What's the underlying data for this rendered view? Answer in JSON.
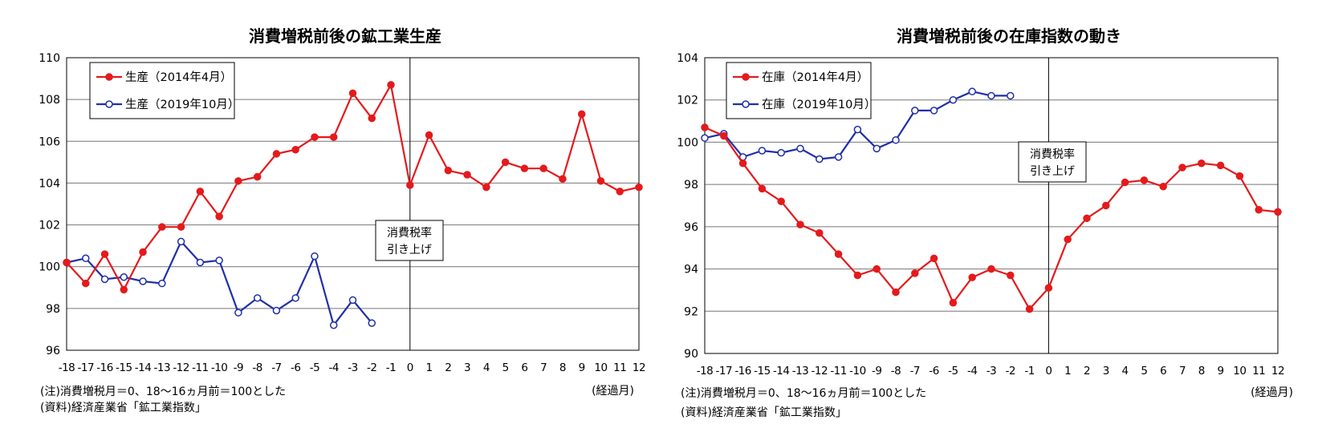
{
  "charts": [
    {
      "source_note": "(注)消費増税月＝0、18〜16ヵ月前＝100とした",
      "data_note": "(資料)経済産業省「鉱工業指数」",
      "annotation": "消費税率\n引き上げ",
      "x_unit": "(経過月)"
    },
    {
      "source_note": "(注)消費増税月＝0、18〜16ヵ月前＝100とした",
      "data_note": "(資料)経済産業省「鉱工業指数」",
      "annotation": "消費税率\n引き上げ",
      "x_unit": "(経過月)"
    }
  ],
  "chart_data": [
    {
      "type": "line",
      "title": "消費増税前後の鉱工業生産",
      "xlabel": "(経過月)",
      "ylabel": "",
      "x": [
        -18,
        -17,
        -16,
        -15,
        -14,
        -13,
        -12,
        -11,
        -10,
        -9,
        -8,
        -7,
        -6,
        -5,
        -4,
        -3,
        -2,
        -1,
        0,
        1,
        2,
        3,
        4,
        5,
        6,
        7,
        8,
        9,
        10,
        11,
        12
      ],
      "ylim": [
        96,
        110
      ],
      "yticks": [
        96,
        98,
        100,
        102,
        104,
        106,
        108,
        110
      ],
      "grid": true,
      "legend": "top-left",
      "series": [
        {
          "name": "生産（2014年4月）",
          "color": "#e41a1c",
          "marker": "filled-circle",
          "values": [
            100.2,
            99.2,
            100.6,
            98.9,
            100.7,
            101.9,
            101.9,
            103.6,
            102.4,
            104.1,
            104.3,
            105.4,
            105.6,
            106.2,
            106.2,
            108.3,
            107.1,
            108.7,
            103.9,
            106.3,
            104.6,
            104.4,
            103.8,
            105.0,
            104.7,
            104.7,
            104.2,
            107.3,
            104.1,
            103.6,
            103.8
          ]
        },
        {
          "name": "生産（2019年10月）",
          "color": "#1f2fa8",
          "marker": "open-circle",
          "values": [
            100.2,
            100.4,
            99.4,
            99.5,
            99.3,
            99.2,
            101.2,
            100.2,
            100.3,
            97.8,
            98.5,
            97.9,
            98.5,
            100.5,
            97.2,
            98.4,
            97.3,
            null,
            null,
            null,
            null,
            null,
            null,
            null,
            null,
            null,
            null,
            null,
            null,
            null,
            null
          ]
        }
      ]
    },
    {
      "type": "line",
      "title": "消費増税前後の在庫指数の動き",
      "xlabel": "(経過月)",
      "ylabel": "",
      "x": [
        -18,
        -17,
        -16,
        -15,
        -14,
        -13,
        -12,
        -11,
        -10,
        -9,
        -8,
        -7,
        -6,
        -5,
        -4,
        -3,
        -2,
        -1,
        0,
        1,
        2,
        3,
        4,
        5,
        6,
        7,
        8,
        9,
        10,
        11,
        12
      ],
      "ylim": [
        90,
        104
      ],
      "yticks": [
        90,
        92,
        94,
        96,
        98,
        100,
        102,
        104
      ],
      "grid": true,
      "legend": "top-left",
      "series": [
        {
          "name": "在庫（2014年4月）",
          "color": "#e41a1c",
          "marker": "filled-circle",
          "values": [
            100.7,
            100.3,
            99.0,
            97.8,
            97.2,
            96.1,
            95.7,
            94.7,
            93.7,
            94.0,
            92.9,
            93.8,
            94.5,
            92.4,
            93.6,
            94.0,
            93.7,
            92.1,
            93.1,
            95.4,
            96.4,
            97.0,
            98.1,
            98.2,
            97.9,
            98.8,
            99.0,
            98.9,
            98.4,
            96.8,
            96.7
          ]
        },
        {
          "name": "在庫（2019年10月）",
          "color": "#1f2fa8",
          "marker": "open-circle",
          "values": [
            100.2,
            100.4,
            99.3,
            99.6,
            99.5,
            99.7,
            99.2,
            99.3,
            100.6,
            99.7,
            100.1,
            101.5,
            101.5,
            102.0,
            102.4,
            102.2,
            102.2,
            null,
            null,
            null,
            null,
            null,
            null,
            null,
            null,
            null,
            null,
            null,
            null,
            null,
            null
          ]
        }
      ]
    }
  ]
}
